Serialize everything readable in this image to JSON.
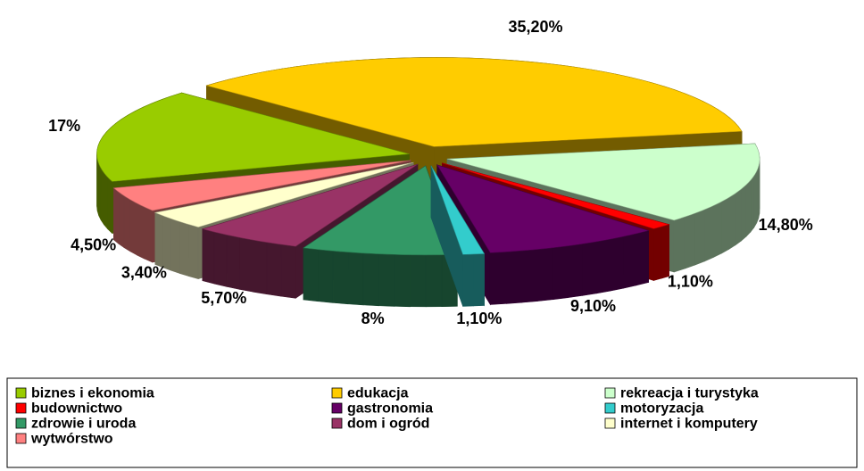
{
  "chart_data": {
    "type": "pie",
    "categories": [
      "biznes i ekonomia",
      "edukacja",
      "rekreacja i turystyka",
      "budownictwo",
      "gastronomia",
      "motoryzacja",
      "zdrowie i uroda",
      "dom i ogród",
      "internet i komputery",
      "wytwórstwo"
    ],
    "values": [
      17,
      35.2,
      14.8,
      1.1,
      9.1,
      1.1,
      8,
      5.7,
      3.4,
      4.5
    ],
    "value_labels": [
      "17%",
      "35,20%",
      "14,80%",
      "1,10%",
      "9,10%",
      "1,10%",
      "8%",
      "5,70%",
      "3,40%",
      "4,50%"
    ],
    "colors": [
      "#99cc00",
      "#ffcc00",
      "#ccffcc",
      "#ff0000",
      "#660066",
      "#33cccc",
      "#339966",
      "#993366",
      "#ffffcc",
      "#ff8080"
    ],
    "legend": "bottom"
  }
}
